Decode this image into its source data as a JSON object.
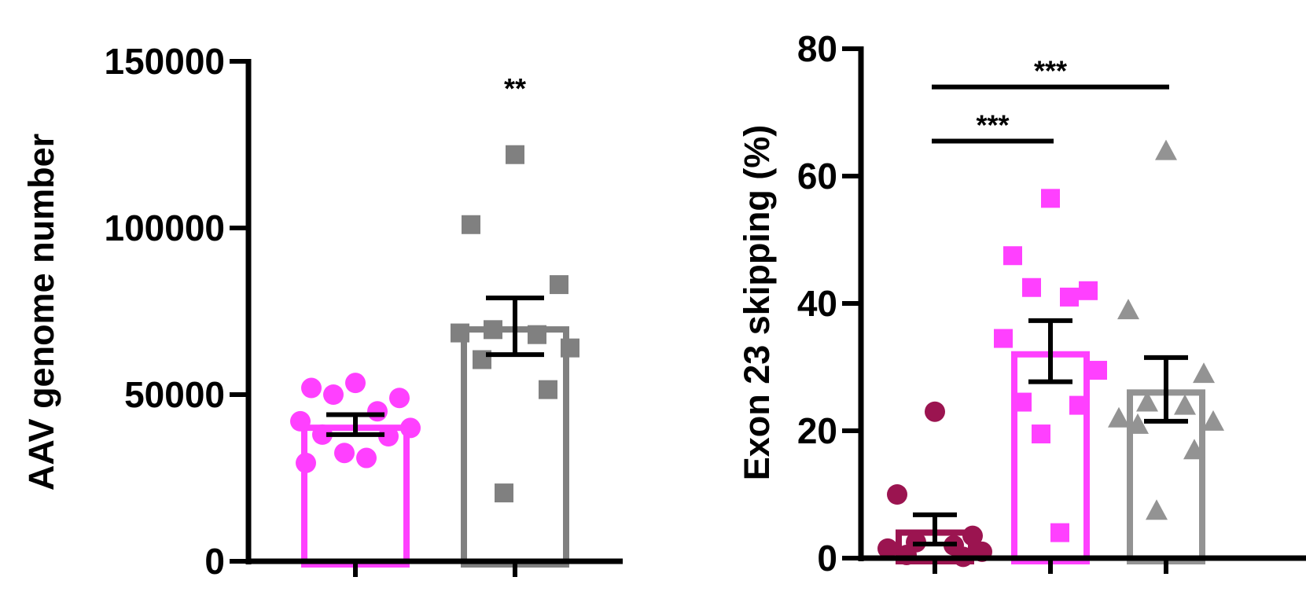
{
  "chart_data": [
    {
      "type": "bar",
      "ylabel": "AAV genome number",
      "ylim": [
        0,
        150000
      ],
      "yticks": [
        0,
        50000,
        100000,
        150000
      ],
      "ytick_labels": [
        "0",
        "50000",
        "100000",
        "150000"
      ],
      "grid": false,
      "legend": "none",
      "groups": [
        {
          "color": "#ff40ff",
          "marker": "circle",
          "mean": 41000,
          "sem": 3000,
          "points": [
            53500,
            52000,
            49000,
            50000,
            45000,
            42000,
            40000,
            38000,
            37500,
            32500,
            31000,
            29500
          ]
        },
        {
          "color": "#808080",
          "marker": "square",
          "mean": 70500,
          "sem": 8500,
          "points": [
            122000,
            101000,
            83000,
            69500,
            68000,
            68500,
            64000,
            60500,
            51500,
            20500
          ]
        }
      ],
      "annotations": [
        {
          "text": "**",
          "group": 1
        }
      ]
    },
    {
      "type": "bar",
      "ylabel": "Exon 23 skipping (%)",
      "ylim": [
        0,
        80
      ],
      "yticks": [
        0,
        20,
        40,
        60,
        80
      ],
      "ytick_labels": [
        "0",
        "20",
        "40",
        "60",
        "80"
      ],
      "grid": false,
      "legend": "none",
      "groups": [
        {
          "color": "#9b1450",
          "marker": "circle",
          "mean": 4.5,
          "sem": 2.3,
          "points": [
            23,
            10,
            3.5,
            2.5,
            2,
            1.5,
            1,
            0.5,
            0.2
          ]
        },
        {
          "color": "#ff40ff",
          "marker": "square",
          "mean": 32.5,
          "sem": 4.8,
          "points": [
            56.5,
            47.5,
            42,
            42.5,
            41,
            34.5,
            29.5,
            24.5,
            24,
            19.5,
            4
          ]
        },
        {
          "color": "#939393",
          "marker": "triangle",
          "mean": 26.5,
          "sem": 5,
          "points": [
            64,
            39,
            29,
            24.5,
            24,
            22,
            21.5,
            21,
            17,
            7.5
          ]
        }
      ],
      "annotations": [
        {
          "text": "***",
          "from": 0,
          "to": 1,
          "y": 65.5
        },
        {
          "text": "***",
          "from": 0,
          "to": 2,
          "y": 74
        }
      ]
    }
  ]
}
